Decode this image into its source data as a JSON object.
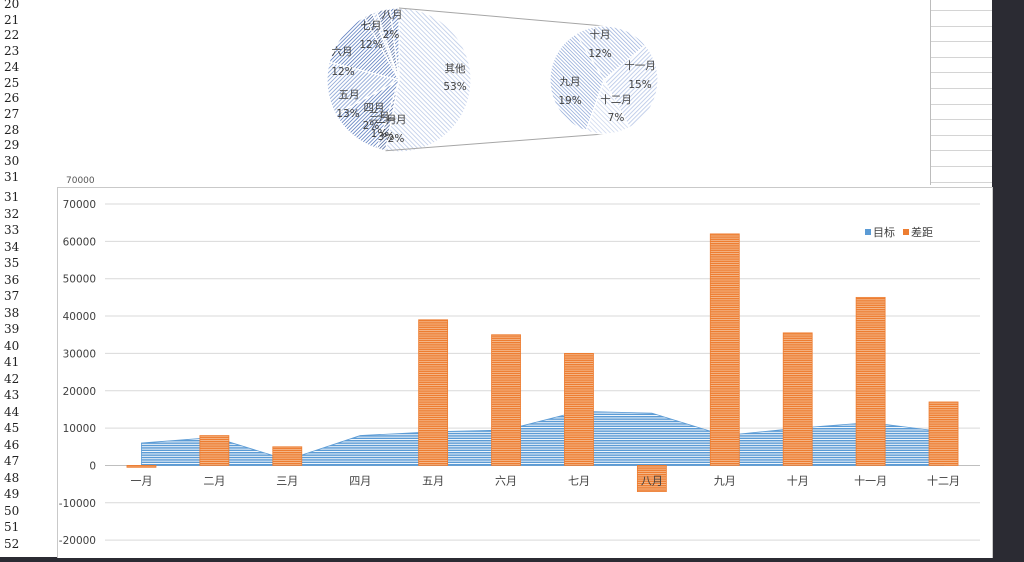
{
  "row_numbers_top": [
    "20",
    "21",
    "22",
    "23",
    "24",
    "25",
    "26",
    "27",
    "28",
    "29",
    "30",
    "31"
  ],
  "row_numbers_bottom": [
    "31",
    "32",
    "33",
    "34",
    "35",
    "36",
    "37",
    "38",
    "39",
    "40",
    "41",
    "42",
    "43",
    "44",
    "45",
    "46",
    "47",
    "48",
    "49",
    "50",
    "51",
    "52"
  ],
  "clipped_axis_label": "70000",
  "chart_data": [
    {
      "type": "pie",
      "variant": "pie-of-pie",
      "slices": [
        {
          "label": "其他",
          "value": 53,
          "percent": "53%"
        },
        {
          "label": "八月",
          "value": 2,
          "percent": "2%"
        },
        {
          "label": "七月",
          "value": 12,
          "percent": "12%"
        },
        {
          "label": "六月",
          "value": 12,
          "percent": "12%"
        },
        {
          "label": "五月",
          "value": 13,
          "percent": "13%"
        },
        {
          "label": "四月",
          "value": 2,
          "percent": "2%"
        },
        {
          "label": "三月",
          "value": 1,
          "percent": "1%"
        },
        {
          "label": "二月",
          "value": 3,
          "percent": "3%"
        },
        {
          "label": "一月",
          "value": 2,
          "percent": "2%"
        }
      ],
      "secondary_slices": [
        {
          "label": "十月",
          "value": 12,
          "percent": "12%"
        },
        {
          "label": "十一月",
          "value": 15,
          "percent": "15%"
        },
        {
          "label": "十二月",
          "value": 7,
          "percent": "7%"
        },
        {
          "label": "九月",
          "value": 19,
          "percent": "19%"
        }
      ]
    },
    {
      "type": "bar",
      "categories": [
        "一月",
        "二月",
        "三月",
        "四月",
        "五月",
        "六月",
        "七月",
        "八月",
        "九月",
        "十月",
        "十一月",
        "十二月"
      ],
      "series": [
        {
          "name": "目标",
          "type": "area",
          "color": "#5b9bd5",
          "values": [
            6000,
            7500,
            1500,
            8000,
            9000,
            9500,
            14500,
            14000,
            8000,
            10000,
            11500,
            9000
          ]
        },
        {
          "name": "差距",
          "type": "bar",
          "color": "#ed7d31",
          "values": [
            -500,
            8000,
            5000,
            0,
            39000,
            35000,
            30000,
            -7000,
            62000,
            35500,
            45000,
            17000
          ]
        }
      ],
      "ylim": [
        -20000,
        70000
      ],
      "yticks": [
        70000,
        60000,
        50000,
        40000,
        30000,
        20000,
        10000,
        0,
        -10000,
        -20000
      ],
      "ytick_labels": [
        "70000",
        "60000",
        "50000",
        "40000",
        "30000",
        "20000",
        "10000",
        "0",
        "-10000",
        "-20000"
      ],
      "legend": {
        "position": "top-right",
        "items": [
          "目标",
          "差距"
        ]
      },
      "grid": true,
      "highlighted_category": "八月"
    }
  ],
  "colors": {
    "blue": "#5b9bd5",
    "orange": "#ed7d31",
    "gridline": "#d9d9d9",
    "axis_text": "#404040"
  }
}
